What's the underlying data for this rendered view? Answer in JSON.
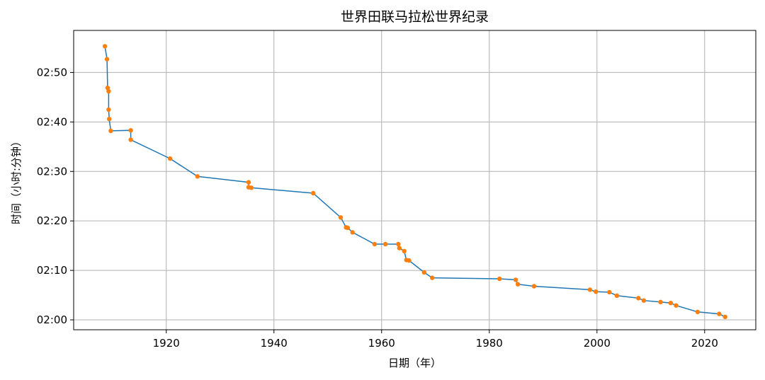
{
  "chart_data": {
    "type": "line",
    "title": "世界田联马拉松世界纪录",
    "xlabel": "日期（年）",
    "ylabel": "时间（小时:分钟）",
    "xlim": [
      1902.8,
      2029.5
    ],
    "ylim": [
      118.0,
      178.5
    ],
    "x_ticks": [
      1920,
      1940,
      1960,
      1980,
      2000,
      2020
    ],
    "x_tick_labels": [
      "1920",
      "1940",
      "1960",
      "1980",
      "2000",
      "2020"
    ],
    "y_ticks": [
      120,
      130,
      140,
      150,
      160,
      170
    ],
    "y_tick_labels": [
      "02:00",
      "02:10",
      "02:20",
      "02:30",
      "02:40",
      "02:50"
    ],
    "grid": true,
    "line_color": "#1f77b4",
    "marker_color": "#ff7f0e",
    "x": [
      1908.6,
      1909.0,
      1909.1,
      1909.3,
      1909.3,
      1909.4,
      1909.7,
      1913.4,
      1913.4,
      1920.7,
      1925.8,
      1935.3,
      1935.3,
      1935.8,
      1947.3,
      1952.4,
      1953.4,
      1953.7,
      1954.6,
      1958.7,
      1960.7,
      1963.1,
      1963.3,
      1964.2,
      1964.6,
      1965.1,
      1967.9,
      1969.4,
      1981.9,
      1984.9,
      1985.3,
      1988.3,
      1998.7,
      1999.8,
      2002.3,
      2003.7,
      2007.7,
      2008.7,
      2011.8,
      2013.7,
      2014.7,
      2018.7,
      2022.7,
      2023.8
    ],
    "y": [
      175.3,
      172.7,
      166.9,
      166.2,
      162.5,
      160.6,
      158.2,
      158.3,
      156.4,
      152.6,
      149.0,
      147.8,
      146.8,
      146.7,
      145.6,
      140.7,
      138.7,
      138.6,
      137.7,
      135.3,
      135.3,
      135.3,
      134.5,
      133.9,
      132.1,
      132.0,
      129.6,
      128.5,
      128.3,
      128.1,
      127.2,
      126.8,
      126.1,
      125.7,
      125.6,
      124.9,
      124.4,
      123.9,
      123.6,
      123.4,
      122.9,
      121.6,
      121.2,
      120.6
    ]
  }
}
